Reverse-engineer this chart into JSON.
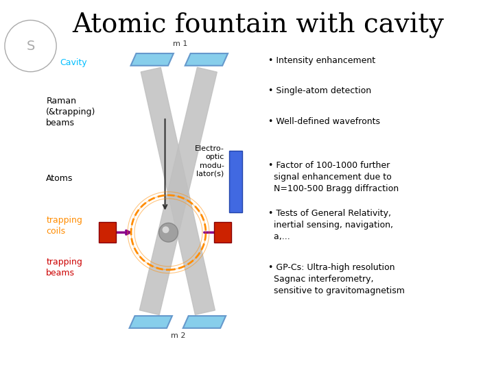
{
  "title": "Atomic fountain with cavity",
  "title_fontsize": 28,
  "background_color": "#ffffff",
  "bullet_points": [
    "• Intensity enhancement",
    "• Single-atom detection",
    "• Well-defined wavefronts",
    "• Factor of 100-1000 further\n  signal enhancement due to\n  N=100-500 Bragg diffraction",
    "• Tests of General Relativity,\n  inertial sensing, navigation,\n  a,...",
    "• GP-Cs: Ultra-high resolution\n  Sagnac interferometry,\n  sensitive to gravitomagnetism"
  ],
  "labels": {
    "cavity": "Cavity",
    "raman": "Raman\n(&trapping)\nbeams",
    "atoms": "Atoms",
    "trapping_coils": "trapping\ncoils",
    "trapping_beams": "trapping\nbeams",
    "electro_optic": "Electro-\noptic\nmodu-\nlator(s)",
    "m1": "m 1",
    "m2": "m 2"
  },
  "colors": {
    "mirror_blue": "#87CEEB",
    "beam_gray": "#C0C0C0",
    "eom_blue": "#4169E1",
    "trapping_coil_orange": "#FF8C00",
    "trapping_beam_purple": "#8B008B",
    "atom_gray": "#808080",
    "label_orange": "#FF8C00",
    "label_red": "#CC0000",
    "arrow_dark": "#333333",
    "text_black": "#000000",
    "title_color": "#000000",
    "cavity_label": "#00BFFF"
  }
}
